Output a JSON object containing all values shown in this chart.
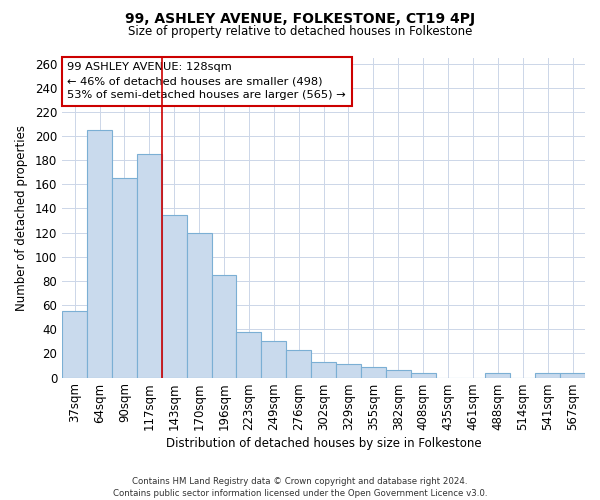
{
  "title": "99, ASHLEY AVENUE, FOLKESTONE, CT19 4PJ",
  "subtitle": "Size of property relative to detached houses in Folkestone",
  "xlabel": "Distribution of detached houses by size in Folkestone",
  "ylabel": "Number of detached properties",
  "bar_labels": [
    "37sqm",
    "64sqm",
    "90sqm",
    "117sqm",
    "143sqm",
    "170sqm",
    "196sqm",
    "223sqm",
    "249sqm",
    "276sqm",
    "302sqm",
    "329sqm",
    "355sqm",
    "382sqm",
    "408sqm",
    "435sqm",
    "461sqm",
    "488sqm",
    "514sqm",
    "541sqm",
    "567sqm"
  ],
  "bar_values": [
    55,
    205,
    165,
    185,
    135,
    120,
    85,
    38,
    30,
    23,
    13,
    11,
    9,
    6,
    4,
    0,
    0,
    4,
    0,
    4,
    4
  ],
  "bar_color": "#c9daed",
  "bar_edge_color": "#7bafd4",
  "vline_x": 3.5,
  "vline_color": "#cc0000",
  "annotation_title": "99 ASHLEY AVENUE: 128sqm",
  "annotation_line1": "← 46% of detached houses are smaller (498)",
  "annotation_line2": "53% of semi-detached houses are larger (565) →",
  "ylim": [
    0,
    265
  ],
  "yticks": [
    0,
    20,
    40,
    60,
    80,
    100,
    120,
    140,
    160,
    180,
    200,
    220,
    240,
    260
  ],
  "footer_line1": "Contains HM Land Registry data © Crown copyright and database right 2024.",
  "footer_line2": "Contains public sector information licensed under the Open Government Licence v3.0.",
  "background_color": "#ffffff",
  "grid_color": "#ccd6e8"
}
